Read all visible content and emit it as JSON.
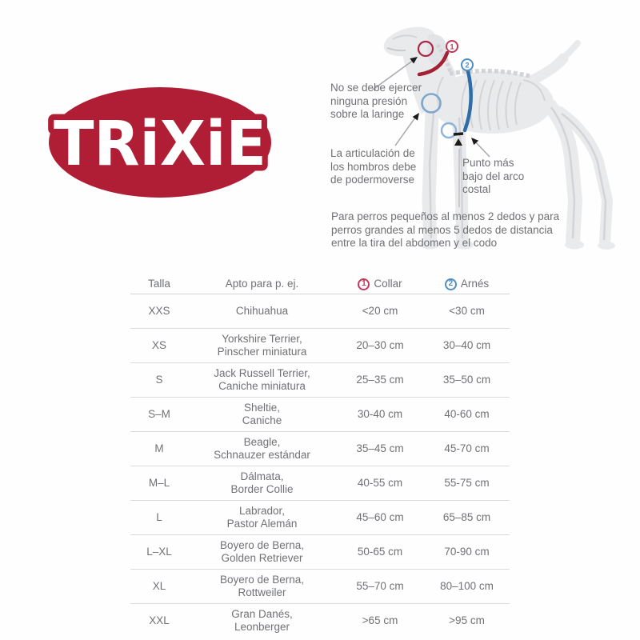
{
  "logo": {
    "text": "TRiXiE",
    "color": "#b01e36"
  },
  "dog": {
    "marker1": "1",
    "marker2": "2",
    "annotations": {
      "larynx": {
        "lines": [
          "No se debe ejercer",
          "ninguna presión",
          "sobre la laringe"
        ]
      },
      "shoulder": {
        "lines": [
          "La articulación de",
          "los hombros debe",
          "de podermoverse"
        ]
      },
      "ribcage": {
        "lines": [
          "Punto más",
          "bajo del arco",
          "costal"
        ]
      }
    },
    "caption_lines": [
      "Para perros pequeños al menos 2 dedos y para",
      "perros grandes al menos 5 dedos de distancia",
      "entre la tira del abdomen y el codo"
    ],
    "colors": {
      "collar": "#a32035",
      "harness": "#2e6da8",
      "marker1_ring": "#c0395b",
      "marker2_ring": "#4e8ec4",
      "body": "#e9eaec",
      "skeleton": "#d3d4d8"
    }
  },
  "table": {
    "headers": {
      "size": "Talla",
      "breeds": "Apto para p. ej.",
      "collar": "Collar",
      "collar_marker": "1",
      "harness": "Arnés",
      "harness_marker": "2"
    },
    "rows": [
      {
        "size": "XXS",
        "breeds": [
          "Chihuahua"
        ],
        "collar": "<20 cm",
        "harness": "<30 cm"
      },
      {
        "size": "XS",
        "breeds": [
          "Yorkshire Terrier,",
          "Pinscher miniatura"
        ],
        "collar": "20–30 cm",
        "harness": "30–40 cm"
      },
      {
        "size": "S",
        "breeds": [
          "Jack Russell Terrier,",
          "Caniche miniatura"
        ],
        "collar": "25–35 cm",
        "harness": "35–50 cm"
      },
      {
        "size": "S–M",
        "breeds": [
          "Sheltie,",
          "Caniche"
        ],
        "collar": "30-40 cm",
        "harness": "40-60 cm"
      },
      {
        "size": "M",
        "breeds": [
          "Beagle,",
          "Schnauzer estándar"
        ],
        "collar": "35–45 cm",
        "harness": "45-70 cm"
      },
      {
        "size": "M–L",
        "breeds": [
          "Dálmata,",
          "Border Collie"
        ],
        "collar": "40-55 cm",
        "harness": "55-75 cm"
      },
      {
        "size": "L",
        "breeds": [
          "Labrador,",
          "Pastor Alemán"
        ],
        "collar": "45–60 cm",
        "harness": "65–85 cm"
      },
      {
        "size": "L–XL",
        "breeds": [
          "Boyero de Berna,",
          "Golden Retriever"
        ],
        "collar": "50-65 cm",
        "harness": "70-90 cm"
      },
      {
        "size": "XL",
        "breeds": [
          "Boyero de Berna,",
          "Rottweiler"
        ],
        "collar": "55–70 cm",
        "harness": "80–100 cm"
      },
      {
        "size": "XXL",
        "breeds": [
          "Gran Danés,",
          "Leonberger"
        ],
        "collar": ">65 cm",
        "harness": ">95 cm"
      }
    ]
  }
}
